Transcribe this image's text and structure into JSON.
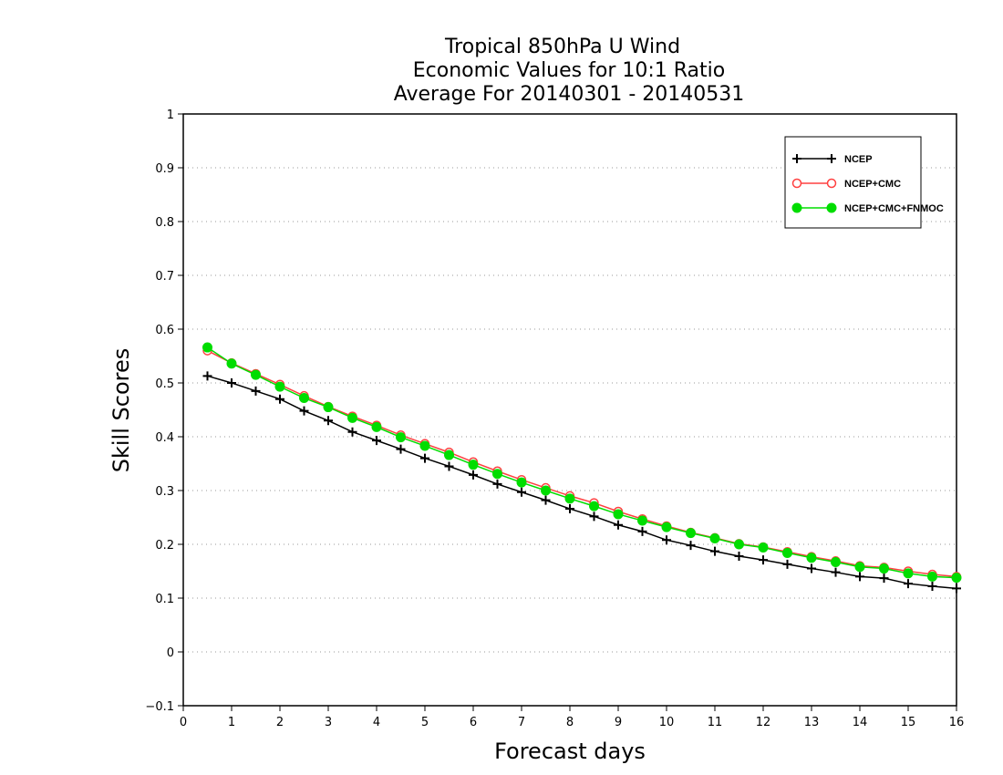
{
  "chart_data": {
    "type": "line",
    "title": [
      "Tropical 850hPa U Wind",
      "Economic Values for 10:1 Ratio",
      "Average For 20140301 - 20140531"
    ],
    "xlabel": "Forecast days",
    "ylabel": "Skill Scores",
    "xlim": [
      0,
      16
    ],
    "ylim": [
      -0.1,
      1
    ],
    "xticks": [
      "0",
      "1",
      "2",
      "3",
      "4",
      "5",
      "6",
      "7",
      "8",
      "9",
      "10",
      "11",
      "12",
      "13",
      "14",
      "15",
      "16"
    ],
    "yticks": [
      "−0.1",
      "0",
      "0.1",
      "0.2",
      "0.3",
      "0.4",
      "0.5",
      "0.6",
      "0.7",
      "0.8",
      "0.9",
      "1"
    ],
    "ytick_values": [
      -0.1,
      0,
      0.1,
      0.2,
      0.3,
      0.4,
      0.5,
      0.6,
      0.7,
      0.8,
      0.9,
      1
    ],
    "grid": "horizontal dotted",
    "legend_position": "top-right",
    "x": [
      0.5,
      1,
      1.5,
      2,
      2.5,
      3,
      3.5,
      4,
      4.5,
      5,
      5.5,
      6,
      6.5,
      7,
      7.5,
      8,
      8.5,
      9,
      9.5,
      10,
      10.5,
      11,
      11.5,
      12,
      12.5,
      13,
      13.5,
      14,
      14.5,
      15,
      15.5,
      16
    ],
    "series": [
      {
        "name": "NCEP",
        "color": "#000000",
        "marker": "plus",
        "values": [
          0.513,
          0.5,
          0.485,
          0.47,
          0.448,
          0.43,
          0.409,
          0.393,
          0.377,
          0.36,
          0.345,
          0.329,
          0.312,
          0.297,
          0.282,
          0.266,
          0.252,
          0.236,
          0.224,
          0.208,
          0.198,
          0.187,
          0.178,
          0.171,
          0.163,
          0.155,
          0.148,
          0.14,
          0.137,
          0.127,
          0.122,
          0.118
        ]
      },
      {
        "name": "NCEP+CMC",
        "color": "#ff4040",
        "marker": "open-circle",
        "values": [
          0.56,
          0.537,
          0.517,
          0.497,
          0.476,
          0.456,
          0.438,
          0.421,
          0.403,
          0.387,
          0.371,
          0.353,
          0.336,
          0.32,
          0.305,
          0.29,
          0.277,
          0.261,
          0.247,
          0.234,
          0.222,
          0.212,
          0.201,
          0.195,
          0.186,
          0.177,
          0.169,
          0.16,
          0.157,
          0.15,
          0.144,
          0.14
        ]
      },
      {
        "name": "NCEP+CMC+FNMOC",
        "color": "#00dd00",
        "marker": "filled-circle",
        "values": [
          0.566,
          0.536,
          0.515,
          0.493,
          0.472,
          0.455,
          0.435,
          0.418,
          0.399,
          0.383,
          0.366,
          0.348,
          0.331,
          0.315,
          0.3,
          0.285,
          0.271,
          0.256,
          0.244,
          0.232,
          0.221,
          0.211,
          0.2,
          0.194,
          0.184,
          0.175,
          0.167,
          0.158,
          0.155,
          0.146,
          0.14,
          0.138
        ]
      }
    ]
  }
}
